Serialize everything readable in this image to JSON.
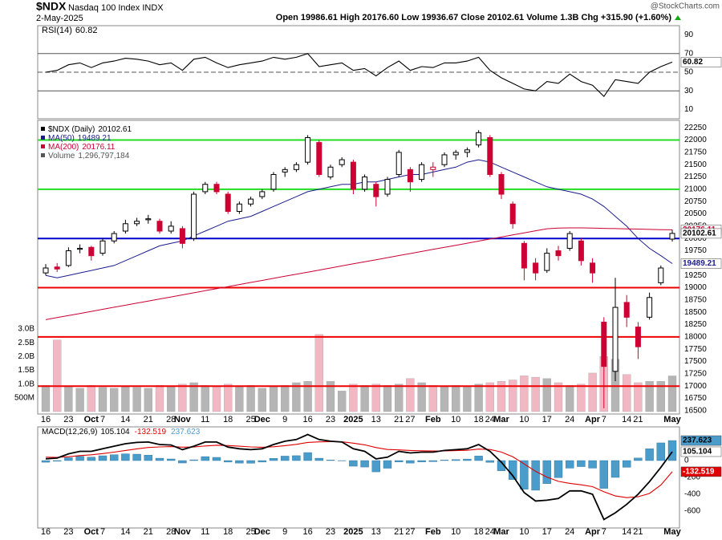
{
  "header": {
    "symbol": "$NDX",
    "name": "Nasdaq 100 Index",
    "exchange": "INDX",
    "date": "2-May-2025",
    "quote": "Open 19986.61 High 20176.60 Low 19936.67 Close 20102.61 Volume 1.3B Chg +315.90 (+1.60%)",
    "credit": "@StockCharts.com"
  },
  "chart_data": [
    {
      "type": "line",
      "series": [
        {
          "name": "RSI(14)",
          "color": "#000000",
          "values": [
            50,
            52,
            58,
            60,
            55,
            60,
            62,
            65,
            64,
            62,
            58,
            60,
            52,
            64,
            66,
            60,
            55,
            58,
            60,
            62,
            66,
            64,
            66,
            70,
            56,
            58,
            60,
            52,
            54,
            46,
            55,
            62,
            52,
            56,
            55,
            60,
            60,
            62,
            66,
            52,
            44,
            38,
            32,
            30,
            40,
            38,
            48,
            40,
            36,
            24,
            42,
            40,
            38,
            50,
            56,
            60.82
          ]
        }
      ],
      "ylim": [
        0,
        100
      ],
      "yticks": [
        10,
        30,
        50,
        70,
        90
      ],
      "reference_lines": [
        30,
        50,
        70
      ]
    },
    {
      "type": "candlestick",
      "title": "$NDX (Daily)",
      "categories": [
        "16",
        null,
        "23",
        null,
        "Oct",
        "7",
        null,
        "14",
        null,
        "21",
        null,
        "28",
        "Nov",
        null,
        "11",
        null,
        "18",
        null,
        "25",
        "Dec",
        null,
        "9",
        null,
        "16",
        null,
        "23",
        null,
        "2025",
        null,
        "13",
        null,
        "21",
        "27",
        null,
        "Feb",
        null,
        "10",
        null,
        "18",
        "24",
        "Mar",
        null,
        "10",
        null,
        "17",
        null,
        "24",
        null,
        "Apr",
        "7",
        null,
        "14",
        "21",
        null,
        null,
        "May"
      ],
      "open": [
        19300,
        19420,
        19450,
        19780,
        19820,
        19700,
        19950,
        20150,
        20300,
        20380,
        20350,
        20150,
        20200,
        20000,
        20950,
        21100,
        20900,
        20550,
        20700,
        20850,
        21000,
        21350,
        21400,
        21550,
        21950,
        21250,
        21500,
        21550,
        21000,
        21100,
        20900,
        21300,
        21400,
        21200,
        21400,
        21500,
        21700,
        21750,
        21900,
        22050,
        21300,
        20700,
        19900,
        19500,
        19350,
        19750,
        19800,
        19950,
        19500,
        18300,
        17300,
        18700,
        18200,
        18400,
        19100,
        19986.61
      ],
      "high": [
        19480,
        19500,
        19820,
        19880,
        19850,
        20000,
        20150,
        20380,
        20420,
        20480,
        20400,
        20350,
        20250,
        20950,
        21150,
        21150,
        20950,
        20750,
        20850,
        21000,
        21350,
        21450,
        21550,
        22100,
        22000,
        21500,
        21650,
        21600,
        21300,
        21150,
        21250,
        21800,
        21450,
        21550,
        21550,
        21750,
        21800,
        21850,
        22200,
        22100,
        21350,
        20750,
        19950,
        19600,
        19800,
        19850,
        20150,
        20000,
        19600,
        18400,
        19200,
        18850,
        18300,
        18900,
        19450,
        20176.6
      ],
      "low": [
        19250,
        19320,
        19420,
        19700,
        19550,
        19650,
        19900,
        20100,
        20250,
        20300,
        20100,
        20100,
        19800,
        19950,
        20900,
        20900,
        20500,
        20500,
        20650,
        20800,
        20950,
        21250,
        21350,
        21500,
        21250,
        21200,
        21450,
        20900,
        20950,
        20650,
        20850,
        21250,
        20950,
        21150,
        21250,
        21450,
        21600,
        21650,
        21850,
        21250,
        20800,
        20200,
        19150,
        19150,
        19300,
        19550,
        19750,
        19450,
        19100,
        16550,
        17100,
        18200,
        17550,
        18350,
        19050,
        19936.67
      ],
      "close": [
        19400,
        19380,
        19750,
        19800,
        19650,
        19950,
        20100,
        20300,
        20350,
        20400,
        20150,
        20250,
        19900,
        20900,
        21100,
        20950,
        20550,
        20700,
        20800,
        20950,
        21300,
        21400,
        21500,
        22050,
        21300,
        21450,
        21600,
        21000,
        21250,
        20850,
        21200,
        21750,
        21150,
        21500,
        21450,
        21700,
        21750,
        21800,
        22150,
        21300,
        20900,
        20300,
        19400,
        19300,
        19700,
        19650,
        20100,
        19550,
        19300,
        17400,
        18600,
        18400,
        17800,
        18800,
        19400,
        20102.61
      ],
      "up_color": "#000000",
      "down_color": "#cc0033",
      "series": [
        {
          "name": "MA(50)",
          "color": "#1c1c8f",
          "values": [
            19250,
            19200,
            19250,
            19300,
            19350,
            19400,
            19450,
            19550,
            19650,
            19750,
            19850,
            19900,
            19950,
            20050,
            20150,
            20250,
            20350,
            20400,
            20450,
            20550,
            20650,
            20750,
            20850,
            20950,
            21000,
            21050,
            21100,
            21100,
            21150,
            21150,
            21200,
            21250,
            21300,
            21300,
            21350,
            21400,
            21450,
            21550,
            21600,
            21550,
            21450,
            21350,
            21250,
            21150,
            21050,
            21000,
            20950,
            20900,
            20800,
            20650,
            20450,
            20250,
            20000,
            19800,
            19650,
            19489.21
          ]
        },
        {
          "name": "MA(200)",
          "color": "#cc0033",
          "values": [
            18350,
            18392,
            18434,
            18476,
            18518,
            18560,
            18602,
            18644,
            18686,
            18728,
            18770,
            18812,
            18854,
            18896,
            18938,
            18980,
            19022,
            19064,
            19106,
            19148,
            19190,
            19232,
            19274,
            19316,
            19358,
            19400,
            19442,
            19484,
            19526,
            19568,
            19610,
            19652,
            19694,
            19736,
            19778,
            19820,
            19862,
            19904,
            19946,
            19988,
            20030,
            20072,
            20114,
            20156,
            20198,
            20210,
            20215,
            20215,
            20210,
            20205,
            20200,
            20195,
            20190,
            20185,
            20180,
            20176.11
          ]
        }
      ],
      "volume": {
        "name": "Volume",
        "last_label": "1,296,797,184",
        "up_color": "#b5b5b5",
        "down_color": "#f1b8c4",
        "values": [
          950000000,
          2600000000,
          900000000,
          850000000,
          950000000,
          880000000,
          850000000,
          900000000,
          880000000,
          850000000,
          950000000,
          900000000,
          1000000000,
          1050000000,
          950000000,
          900000000,
          1000000000,
          900000000,
          950000000,
          850000000,
          900000000,
          950000000,
          1050000000,
          1100000000,
          2800000000,
          1100000000,
          750000000,
          1000000000,
          950000000,
          1000000000,
          950000000,
          1000000000,
          1200000000,
          1050000000,
          950000000,
          900000000,
          950000000,
          900000000,
          1000000000,
          1050000000,
          1100000000,
          1150000000,
          1300000000,
          1250000000,
          1200000000,
          1050000000,
          950000000,
          1000000000,
          1400000000,
          2000000000,
          1900000000,
          1350000000,
          1050000000,
          1100000000,
          1100000000,
          1296797184
        ],
        "ylim": [
          0,
          3000000000
        ],
        "yticks": [
          {
            "value": 500000000,
            "label": "500M"
          },
          {
            "value": 1000000000,
            "label": "1.0B"
          },
          {
            "value": 1500000000,
            "label": "1.5B"
          },
          {
            "value": 2000000000,
            "label": "2.0B"
          },
          {
            "value": 2500000000,
            "label": "2.5B"
          },
          {
            "value": 3000000000,
            "label": "3.0B"
          }
        ]
      },
      "ylim": [
        16400,
        22400
      ],
      "yticks": [
        16500,
        16750,
        17000,
        17250,
        17500,
        17750,
        18000,
        18250,
        18500,
        18750,
        19000,
        19250,
        19500,
        19750,
        20000,
        20250,
        20500,
        20750,
        21000,
        21250,
        21500,
        21750,
        22000,
        22250
      ],
      "hlines": [
        {
          "value": 22000,
          "color": "#22dd22"
        },
        {
          "value": 21000,
          "color": "#22dd22"
        },
        {
          "value": 20000,
          "color": "#0000cc"
        },
        {
          "value": 19000,
          "color": "#ee0000"
        },
        {
          "value": 18000,
          "color": "#ee0000"
        },
        {
          "value": 17000,
          "color": "#ee0000"
        }
      ]
    },
    {
      "type": "macd",
      "title": "MACD(12,26,9)",
      "categories": [
        "16",
        null,
        "23",
        null,
        "Oct",
        "7",
        null,
        "14",
        null,
        "21",
        null,
        "28",
        "Nov",
        null,
        "11",
        null,
        "18",
        null,
        "25",
        "Dec",
        null,
        "9",
        null,
        "16",
        null,
        "23",
        null,
        "2025",
        null,
        "13",
        null,
        "21",
        "27",
        null,
        "Feb",
        null,
        "10",
        null,
        "18",
        "24",
        "Mar",
        null,
        "10",
        null,
        "17",
        null,
        "24",
        null,
        "Apr",
        "7",
        null,
        "14",
        "21",
        null,
        null,
        "May"
      ],
      "macd": {
        "color": "#000000",
        "values": [
          20,
          30,
          80,
          110,
          110,
          140,
          170,
          200,
          215,
          220,
          190,
          185,
          130,
          170,
          220,
          220,
          160,
          140,
          130,
          140,
          190,
          230,
          250,
          310,
          250,
          230,
          220,
          140,
          110,
          20,
          40,
          110,
          90,
          100,
          100,
          120,
          130,
          140,
          190,
          110,
          -20,
          -180,
          -380,
          -480,
          -470,
          -450,
          -360,
          -360,
          -400,
          -700,
          -620,
          -520,
          -400,
          -250,
          -80,
          105.104
        ]
      },
      "signal": {
        "color": "#e00000",
        "values": [
          40,
          38,
          46,
          59,
          69,
          83,
          100,
          120,
          139,
          155,
          162,
          166,
          159,
          161,
          173,
          182,
          178,
          170,
          162,
          158,
          164,
          177,
          192,
          215,
          222,
          224,
          223,
          207,
          187,
          154,
          131,
          127,
          120,
          116,
          113,
          114,
          118,
          122,
          136,
          131,
          101,
          45,
          -40,
          -128,
          -196,
          -247,
          -270,
          -288,
          -310,
          -370,
          -420,
          -440,
          -430,
          -390,
          -290,
          -132.519
        ]
      },
      "histogram": {
        "color": "#4a9ccb",
        "values": [
          -20,
          -8,
          34,
          51,
          41,
          57,
          70,
          80,
          76,
          65,
          28,
          19,
          -29,
          9,
          47,
          38,
          -18,
          -30,
          -32,
          -18,
          26,
          53,
          58,
          95,
          28,
          6,
          -3,
          -67,
          -77,
          -134,
          -91,
          -17,
          -30,
          -16,
          -13,
          6,
          12,
          18,
          54,
          -21,
          -121,
          -225,
          -340,
          -352,
          -274,
          -203,
          -90,
          -72,
          -90,
          -330,
          -200,
          -80,
          30,
          140,
          210,
          237.623
        ]
      },
      "ylim": [
        -800,
        400
      ],
      "yticks": [
        -600,
        -400,
        -200,
        0
      ]
    }
  ]
}
